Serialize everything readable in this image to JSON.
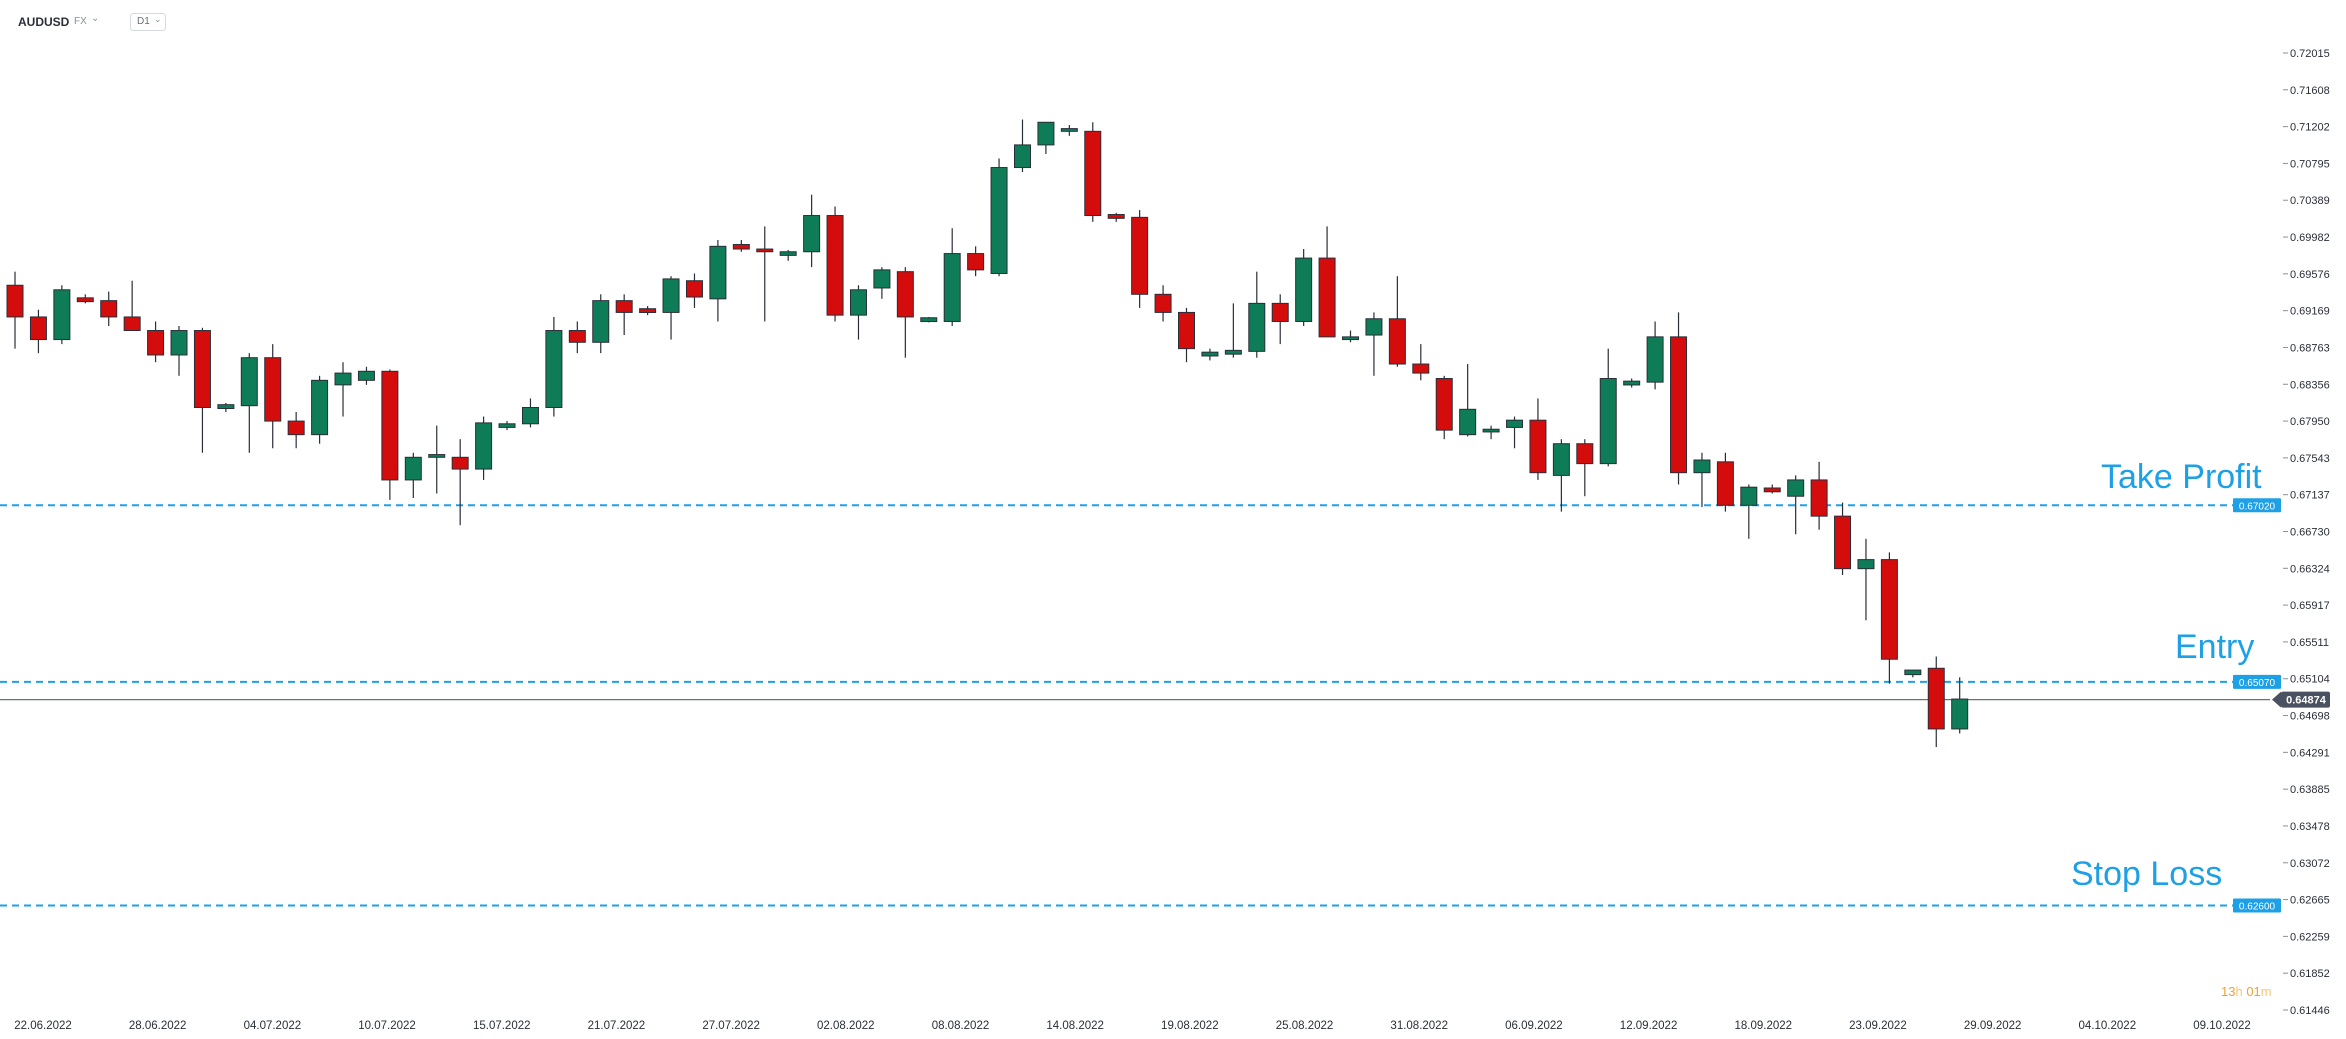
{
  "toolbar": {
    "symbol": "AUDUSD",
    "market": "FX",
    "market_caret": "⌄",
    "timeframe": "D1",
    "timeframe_caret": "⌄"
  },
  "countdown": {
    "hours": "13",
    "h_unit": "h",
    "minutes": "01",
    "m_unit": "m"
  },
  "annotations": {
    "take_profit": "Take Profit",
    "entry": "Entry",
    "stop_loss": "Stop Loss"
  },
  "colors": {
    "bull": "#0e7d57",
    "bear": "#d40c0c",
    "level_line": "#1ea0e6",
    "price_tag": "#4a5160",
    "text": "#2a2e39"
  },
  "chart_data": {
    "type": "candlestick",
    "ylim": [
      0.61446,
      0.72015
    ],
    "y_ticks": [
      "0.72015",
      "0.71608",
      "0.71202",
      "0.70795",
      "0.70389",
      "0.69982",
      "0.69576",
      "0.69169",
      "0.68763",
      "0.68356",
      "0.67950",
      "0.67543",
      "0.67137",
      "0.66730",
      "0.66324",
      "0.65917",
      "0.65511",
      "0.65104",
      "0.64698",
      "0.64291",
      "0.63885",
      "0.63478",
      "0.63072",
      "0.62665",
      "0.62259",
      "0.61852",
      "0.61446"
    ],
    "x_labels": [
      "22.06.2022",
      "28.06.2022",
      "04.07.2022",
      "10.07.2022",
      "15.07.2022",
      "21.07.2022",
      "27.07.2022",
      "02.08.2022",
      "08.08.2022",
      "14.08.2022",
      "19.08.2022",
      "25.08.2022",
      "31.08.2022",
      "06.09.2022",
      "12.09.2022",
      "18.09.2022",
      "23.09.2022",
      "29.09.2022",
      "04.10.2022",
      "09.10.2022"
    ],
    "levels": [
      {
        "label": "Take Profit",
        "value": 0.6702,
        "tag": "0.67020"
      },
      {
        "label": "Entry",
        "value": 0.6507,
        "tag": "0.65070"
      },
      {
        "label": "Stop Loss",
        "value": 0.626,
        "tag": "0.62600"
      }
    ],
    "current_price": {
      "value": 0.64874,
      "tag": "0.64874"
    },
    "candles": [
      {
        "o": 0.6945,
        "h": 0.696,
        "l": 0.6875,
        "c": 0.691
      },
      {
        "o": 0.691,
        "h": 0.6918,
        "l": 0.687,
        "c": 0.6885
      },
      {
        "o": 0.6885,
        "h": 0.6945,
        "l": 0.688,
        "c": 0.694
      },
      {
        "o": 0.693,
        "h": 0.6935,
        "l": 0.6925,
        "c": 0.6928
      },
      {
        "o": 0.6928,
        "h": 0.6938,
        "l": 0.69,
        "c": 0.691
      },
      {
        "o": 0.691,
        "h": 0.695,
        "l": 0.6895,
        "c": 0.6895
      },
      {
        "o": 0.6895,
        "h": 0.6905,
        "l": 0.686,
        "c": 0.6868
      },
      {
        "o": 0.6868,
        "h": 0.69,
        "l": 0.6845,
        "c": 0.6895
      },
      {
        "o": 0.6895,
        "h": 0.6898,
        "l": 0.676,
        "c": 0.681
      },
      {
        "o": 0.681,
        "h": 0.6815,
        "l": 0.6805,
        "c": 0.6812
      },
      {
        "o": 0.6812,
        "h": 0.687,
        "l": 0.676,
        "c": 0.6865
      },
      {
        "o": 0.6865,
        "h": 0.688,
        "l": 0.6765,
        "c": 0.6795
      },
      {
        "o": 0.6795,
        "h": 0.6805,
        "l": 0.6765,
        "c": 0.678
      },
      {
        "o": 0.678,
        "h": 0.6845,
        "l": 0.677,
        "c": 0.684
      },
      {
        "o": 0.6835,
        "h": 0.686,
        "l": 0.68,
        "c": 0.6848
      },
      {
        "o": 0.684,
        "h": 0.6855,
        "l": 0.6835,
        "c": 0.685
      },
      {
        "o": 0.685,
        "h": 0.6852,
        "l": 0.6708,
        "c": 0.673
      },
      {
        "o": 0.673,
        "h": 0.676,
        "l": 0.671,
        "c": 0.6755
      },
      {
        "o": 0.6755,
        "h": 0.679,
        "l": 0.6715,
        "c": 0.6758
      },
      {
        "o": 0.6755,
        "h": 0.6775,
        "l": 0.668,
        "c": 0.6742
      },
      {
        "o": 0.6742,
        "h": 0.68,
        "l": 0.673,
        "c": 0.6793
      },
      {
        "o": 0.6788,
        "h": 0.6795,
        "l": 0.6785,
        "c": 0.6792
      },
      {
        "o": 0.6792,
        "h": 0.682,
        "l": 0.6788,
        "c": 0.681
      },
      {
        "o": 0.681,
        "h": 0.691,
        "l": 0.68,
        "c": 0.6895
      },
      {
        "o": 0.6895,
        "h": 0.6905,
        "l": 0.687,
        "c": 0.6882
      },
      {
        "o": 0.6882,
        "h": 0.6935,
        "l": 0.687,
        "c": 0.6928
      },
      {
        "o": 0.6928,
        "h": 0.6935,
        "l": 0.689,
        "c": 0.6915
      },
      {
        "o": 0.6918,
        "h": 0.6922,
        "l": 0.6912,
        "c": 0.6916
      },
      {
        "o": 0.6915,
        "h": 0.6955,
        "l": 0.6885,
        "c": 0.6952
      },
      {
        "o": 0.695,
        "h": 0.6958,
        "l": 0.692,
        "c": 0.6932
      },
      {
        "o": 0.693,
        "h": 0.6995,
        "l": 0.6905,
        "c": 0.6988
      },
      {
        "o": 0.699,
        "h": 0.6995,
        "l": 0.6982,
        "c": 0.6985
      },
      {
        "o": 0.6985,
        "h": 0.701,
        "l": 0.6905,
        "c": 0.6982
      },
      {
        "o": 0.6978,
        "h": 0.6984,
        "l": 0.6972,
        "c": 0.6982
      },
      {
        "o": 0.6982,
        "h": 0.7045,
        "l": 0.6965,
        "c": 0.7022
      },
      {
        "o": 0.7022,
        "h": 0.7032,
        "l": 0.6905,
        "c": 0.6912
      },
      {
        "o": 0.6912,
        "h": 0.6945,
        "l": 0.6885,
        "c": 0.694
      },
      {
        "o": 0.6942,
        "h": 0.6965,
        "l": 0.693,
        "c": 0.6962
      },
      {
        "o": 0.696,
        "h": 0.6965,
        "l": 0.6865,
        "c": 0.691
      },
      {
        "o": 0.6906,
        "h": 0.691,
        "l": 0.6904,
        "c": 0.6908
      },
      {
        "o": 0.6905,
        "h": 0.7008,
        "l": 0.69,
        "c": 0.698
      },
      {
        "o": 0.698,
        "h": 0.6988,
        "l": 0.6955,
        "c": 0.6962
      },
      {
        "o": 0.6958,
        "h": 0.7085,
        "l": 0.6955,
        "c": 0.7075
      },
      {
        "o": 0.7075,
        "h": 0.7128,
        "l": 0.707,
        "c": 0.71
      },
      {
        "o": 0.71,
        "h": 0.7125,
        "l": 0.709,
        "c": 0.7125
      },
      {
        "o": 0.7115,
        "h": 0.7122,
        "l": 0.711,
        "c": 0.7118
      },
      {
        "o": 0.7115,
        "h": 0.7125,
        "l": 0.7015,
        "c": 0.7022
      },
      {
        "o": 0.7022,
        "h": 0.7025,
        "l": 0.7015,
        "c": 0.702
      },
      {
        "o": 0.702,
        "h": 0.7028,
        "l": 0.692,
        "c": 0.6935
      },
      {
        "o": 0.6935,
        "h": 0.6945,
        "l": 0.6905,
        "c": 0.6915
      },
      {
        "o": 0.6915,
        "h": 0.692,
        "l": 0.686,
        "c": 0.6875
      },
      {
        "o": 0.6868,
        "h": 0.6875,
        "l": 0.6862,
        "c": 0.687
      },
      {
        "o": 0.687,
        "h": 0.6925,
        "l": 0.6865,
        "c": 0.6872
      },
      {
        "o": 0.6872,
        "h": 0.696,
        "l": 0.6865,
        "c": 0.6925
      },
      {
        "o": 0.6925,
        "h": 0.6935,
        "l": 0.688,
        "c": 0.6905
      },
      {
        "o": 0.6905,
        "h": 0.6985,
        "l": 0.69,
        "c": 0.6975
      },
      {
        "o": 0.6975,
        "h": 0.701,
        "l": 0.689,
        "c": 0.6888
      },
      {
        "o": 0.6885,
        "h": 0.6895,
        "l": 0.6882,
        "c": 0.6888
      },
      {
        "o": 0.689,
        "h": 0.6915,
        "l": 0.6845,
        "c": 0.6908
      },
      {
        "o": 0.6908,
        "h": 0.6955,
        "l": 0.6855,
        "c": 0.6858
      },
      {
        "o": 0.6858,
        "h": 0.688,
        "l": 0.684,
        "c": 0.6848
      },
      {
        "o": 0.6842,
        "h": 0.6845,
        "l": 0.6775,
        "c": 0.6785
      },
      {
        "o": 0.678,
        "h": 0.6858,
        "l": 0.6778,
        "c": 0.6808
      },
      {
        "o": 0.6783,
        "h": 0.679,
        "l": 0.6775,
        "c": 0.6786
      },
      {
        "o": 0.6788,
        "h": 0.68,
        "l": 0.6765,
        "c": 0.6796
      },
      {
        "o": 0.6796,
        "h": 0.682,
        "l": 0.673,
        "c": 0.6738
      },
      {
        "o": 0.6735,
        "h": 0.6775,
        "l": 0.6695,
        "c": 0.677
      },
      {
        "o": 0.677,
        "h": 0.6775,
        "l": 0.6712,
        "c": 0.6748
      },
      {
        "o": 0.6748,
        "h": 0.6875,
        "l": 0.6745,
        "c": 0.6842
      },
      {
        "o": 0.6836,
        "h": 0.6842,
        "l": 0.6832,
        "c": 0.6838
      },
      {
        "o": 0.6838,
        "h": 0.6905,
        "l": 0.683,
        "c": 0.6888
      },
      {
        "o": 0.6888,
        "h": 0.6915,
        "l": 0.6725,
        "c": 0.6738
      },
      {
        "o": 0.6738,
        "h": 0.676,
        "l": 0.67,
        "c": 0.6752
      },
      {
        "o": 0.675,
        "h": 0.676,
        "l": 0.6695,
        "c": 0.6702
      },
      {
        "o": 0.6702,
        "h": 0.6725,
        "l": 0.6665,
        "c": 0.6722
      },
      {
        "o": 0.672,
        "h": 0.6725,
        "l": 0.6715,
        "c": 0.6718
      },
      {
        "o": 0.6712,
        "h": 0.6735,
        "l": 0.667,
        "c": 0.673
      },
      {
        "o": 0.673,
        "h": 0.675,
        "l": 0.6675,
        "c": 0.669
      },
      {
        "o": 0.669,
        "h": 0.6705,
        "l": 0.6625,
        "c": 0.6632
      },
      {
        "o": 0.6632,
        "h": 0.6665,
        "l": 0.6575,
        "c": 0.6642
      },
      {
        "o": 0.6642,
        "h": 0.665,
        "l": 0.6505,
        "c": 0.6532
      },
      {
        "o": 0.6515,
        "h": 0.652,
        "l": 0.6512,
        "c": 0.652
      },
      {
        "o": 0.6522,
        "h": 0.6535,
        "l": 0.6435,
        "c": 0.6455
      },
      {
        "o": 0.6455,
        "h": 0.6512,
        "l": 0.645,
        "c": 0.6488
      }
    ]
  }
}
